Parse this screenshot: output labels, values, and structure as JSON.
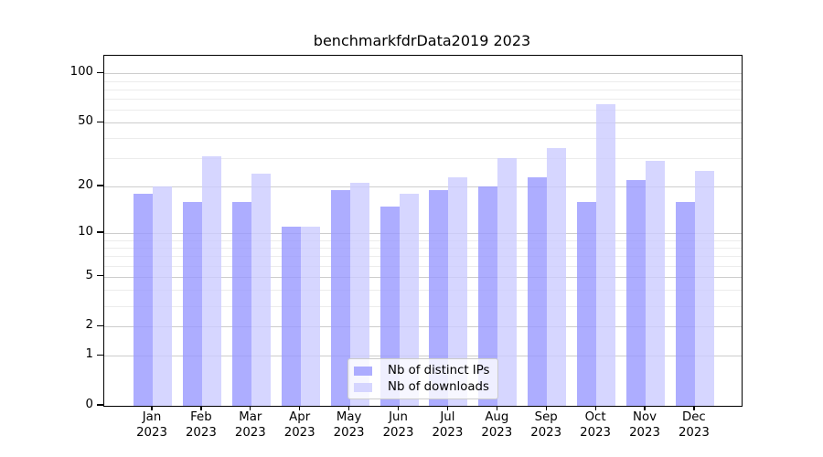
{
  "title": "benchmarkfdrData2019 2023",
  "chart_data": {
    "type": "bar",
    "categories": [
      "Jan 2023",
      "Feb 2023",
      "Mar 2023",
      "Apr 2023",
      "May 2023",
      "Jun 2023",
      "Jul 2023",
      "Aug 2023",
      "Sep 2023",
      "Oct 2023",
      "Nov 2023",
      "Dec 2023"
    ],
    "months": [
      "Jan",
      "Feb",
      "Mar",
      "Apr",
      "May",
      "Jun",
      "Jul",
      "Aug",
      "Sep",
      "Oct",
      "Nov",
      "Dec"
    ],
    "year_label": "2023",
    "series": [
      {
        "name": "Nb of distinct IPs",
        "color": "rgba(153,153,255,0.8)",
        "values": [
          18,
          16,
          16,
          11,
          19,
          15,
          19,
          20,
          23,
          16,
          22,
          16
        ]
      },
      {
        "name": "Nb of downloads",
        "color": "rgba(204,204,255,0.8)",
        "values": [
          20,
          31,
          24,
          11,
          21,
          18,
          23,
          30,
          35,
          65,
          29,
          25
        ]
      }
    ],
    "yscale": "log1p",
    "ylim": [
      0,
      128
    ],
    "y_major_ticks": [
      0,
      1,
      2,
      5,
      10,
      20,
      50,
      100
    ],
    "y_minor_ticks": [
      3,
      4,
      6,
      7,
      8,
      9,
      30,
      40,
      60,
      70,
      80,
      90
    ],
    "grid": "on",
    "legend_position": "lower center",
    "colors": {
      "major_grid": "#cdcdcd",
      "minor_grid": "#ececec",
      "spine": "#000000",
      "background": "#ffffff"
    }
  }
}
